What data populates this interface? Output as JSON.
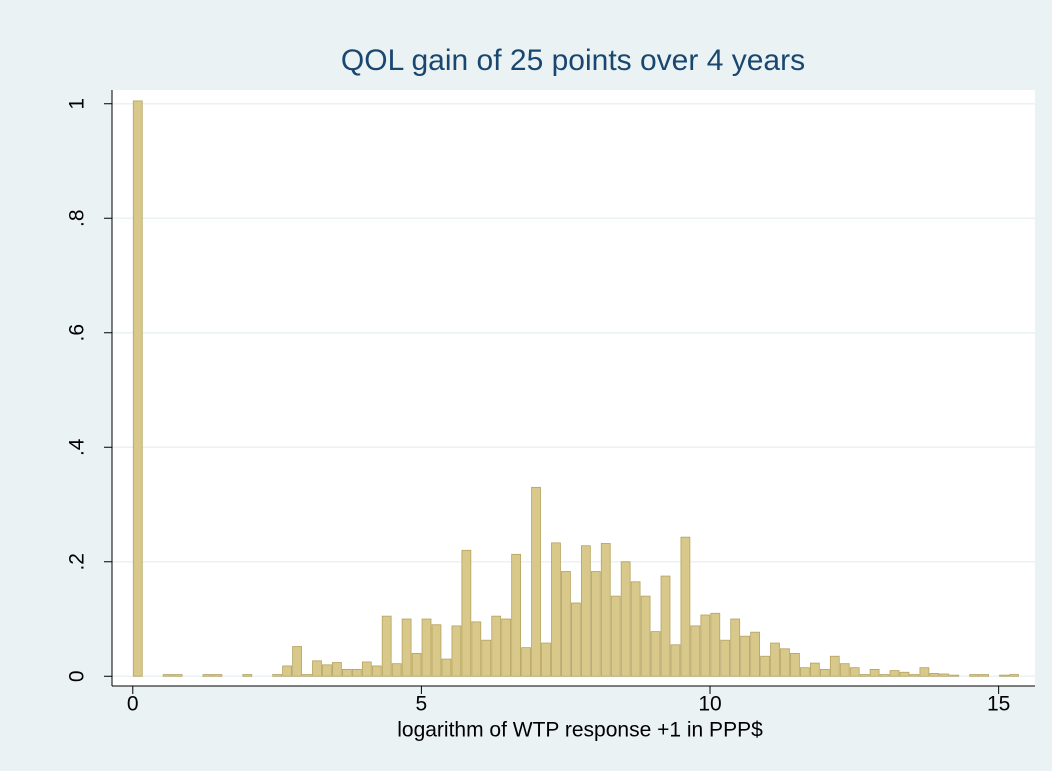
{
  "chart_data": {
    "type": "histogram",
    "title": "QOL gain of 25 points over 4 years",
    "x_label": "logarithm of WTP response +1 in PPP$",
    "bins": [
      0,
      0.1725,
      0.345,
      0.5175,
      0.69,
      0.8625,
      1.035,
      1.2075,
      1.38,
      1.5525,
      1.725,
      1.8975,
      2.07,
      2.2425,
      2.415,
      2.5875,
      2.76,
      2.9325,
      3.105,
      3.2775,
      3.45,
      3.6225,
      3.795,
      3.9675,
      4.14,
      4.3125,
      4.485,
      4.6575,
      4.83,
      5.0025,
      5.175,
      5.3475,
      5.52,
      5.6925,
      5.865,
      6.0375,
      6.21,
      6.3825,
      6.555,
      6.7275,
      6.9,
      7.0725,
      7.245,
      7.4175,
      7.59,
      7.7625,
      7.935,
      8.1075,
      8.28,
      8.4525,
      8.625,
      8.7975,
      8.97,
      9.1425,
      9.315,
      9.4875,
      9.66,
      9.8325,
      10.005,
      10.1775,
      10.35,
      10.5225,
      10.695,
      10.8675,
      11.04,
      11.2125,
      11.385,
      11.5575,
      11.73,
      11.9025,
      12.075,
      12.2475,
      12.42,
      12.5925,
      12.765,
      12.9375,
      13.11,
      13.2825,
      13.455,
      13.6275,
      13.8,
      13.9725,
      14.145,
      14.3175,
      14.49,
      14.6625,
      14.835,
      15.0075,
      15.18,
      15.3525
    ],
    "values": [
      1.005,
      0,
      0,
      0.003,
      0.003,
      0,
      0,
      0.003,
      0.003,
      0,
      0,
      0.003,
      0,
      0,
      0.003,
      0.018,
      0.052,
      0.003,
      0.027,
      0.02,
      0.024,
      0.012,
      0.012,
      0.025,
      0.018,
      0.105,
      0.022,
      0.1,
      0.04,
      0.1,
      0.09,
      0.03,
      0.088,
      0.22,
      0.095,
      0.063,
      0.105,
      0.1,
      0.213,
      0.05,
      0.33,
      0.058,
      0.233,
      0.183,
      0.128,
      0.228,
      0.183,
      0.232,
      0.14,
      0.2,
      0.165,
      0.14,
      0.078,
      0.175,
      0.055,
      0.243,
      0.088,
      0.107,
      0.11,
      0.063,
      0.1,
      0.07,
      0.077,
      0.035,
      0.058,
      0.048,
      0.04,
      0.015,
      0.023,
      0.012,
      0.035,
      0.022,
      0.015,
      0.003,
      0.012,
      0.003,
      0.01,
      0.007,
      0.003,
      0.015,
      0.005,
      0.004,
      0.002,
      0,
      0.003,
      0.003,
      0,
      0.002,
      0.003
    ],
    "color": "#d8c88a",
    "edge_color": "#b5a35f",
    "xlim": [
      -0.36,
      15.63
    ],
    "ylim": [
      -0.017,
      1.024
    ],
    "xticks": [
      0,
      5,
      10,
      15
    ],
    "yticks": [
      0,
      {
        "value": 0.2,
        "label": ".2"
      },
      {
        "value": 0.4,
        "label": ".4"
      },
      {
        "value": 0.6,
        "label": ".6"
      },
      {
        "value": 0.8,
        "label": ".8"
      },
      1
    ],
    "grid": true
  }
}
